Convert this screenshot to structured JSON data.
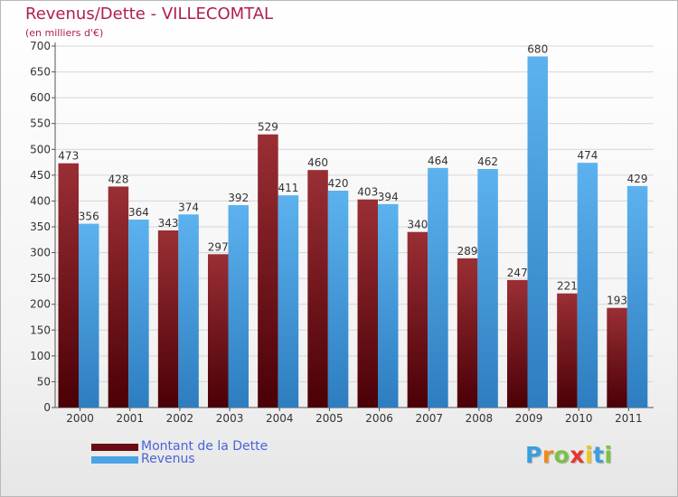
{
  "chart_data": {
    "type": "bar",
    "title": "Revenus/Dette - VILLECOMTAL",
    "subtitle": "(en milliers d'€)",
    "xlabel": "",
    "ylabel": "",
    "ylim": [
      0,
      700
    ],
    "yticks": [
      "0",
      "50",
      "100",
      "150",
      "200",
      "250",
      "300",
      "350",
      "400",
      "450",
      "500",
      "550",
      "600",
      "650",
      "700"
    ],
    "grid": true,
    "categories": [
      "2000",
      "2001",
      "2002",
      "2003",
      "2004",
      "2005",
      "2006",
      "2007",
      "2008",
      "2009",
      "2010",
      "2011"
    ],
    "series": [
      {
        "name": "Montant de la Dette",
        "color": "#8b1c24",
        "values": [
          473,
          428,
          343,
          297,
          529,
          460,
          403,
          340,
          289,
          247,
          221,
          193
        ]
      },
      {
        "name": "Revenus",
        "color": "#4aa3e6",
        "values": [
          356,
          364,
          374,
          392,
          411,
          420,
          394,
          464,
          462,
          680,
          474,
          429
        ]
      }
    ],
    "legend_position": "bottom-left"
  },
  "legend": {
    "debt_label": "Montant de la Dette",
    "revenue_label": "Revenus",
    "debt_color": "#6a0a12",
    "revenue_color": "#4aa3e6"
  },
  "logo": {
    "text": "Proxiti"
  }
}
